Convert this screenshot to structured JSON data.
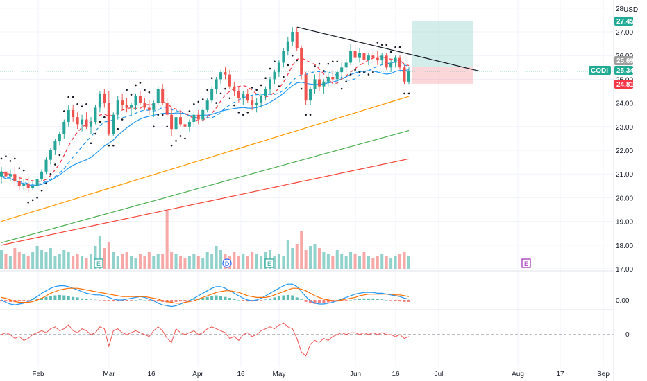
{
  "chart_data": {
    "type": "candlestick",
    "symbol": "CODI",
    "currency": "USD",
    "price_axis": {
      "range": [
        17.0,
        28.0
      ],
      "ticks": [
        "17.00",
        "18.00",
        "19.00",
        "20.00",
        "21.00",
        "22.00",
        "23.00",
        "24.00",
        "25.00",
        "26.00",
        "27.00",
        "28"
      ]
    },
    "time_axis": {
      "labels": [
        "Feb",
        "Mar",
        "16",
        "Apr",
        "16",
        "May",
        "Jun",
        "16",
        "Jul",
        "Aug",
        "17",
        "Sep"
      ]
    },
    "price_badges": {
      "target": {
        "label": "27.45",
        "value": 27.45,
        "color": "#22ab94"
      },
      "ma_level": {
        "label": "25.69",
        "value": 25.69,
        "color": "#9e9e9e"
      },
      "last": {
        "label": "25.34",
        "value": 25.34,
        "color": "#22ab94"
      },
      "stop": {
        "label": "24.81",
        "value": 24.81,
        "color": "#f23645"
      }
    },
    "symbol_badge": {
      "label": "CODI",
      "color": "#22ab94"
    },
    "position": {
      "target": 27.45,
      "entry": 25.53,
      "stop": 24.81
    },
    "moving_averages": [
      {
        "color": "#2196f3",
        "style": "solid",
        "period_hint": "short"
      },
      {
        "color": "#2196f3",
        "style": "dashed",
        "period_hint": "short-2"
      },
      {
        "color": "#f23645",
        "style": "dashed",
        "period_hint": "short-3"
      },
      {
        "color": "#ff9800",
        "style": "solid",
        "period_hint": "medium"
      },
      {
        "color": "#4caf50",
        "style": "solid",
        "period_hint": "long"
      },
      {
        "color": "#f44336",
        "style": "solid",
        "period_hint": "longest"
      }
    ],
    "trendline": {
      "start": {
        "date": "May 4",
        "price": 27.2
      },
      "end": {
        "date": "Jun 28",
        "price": 25.35
      },
      "color": "#131722"
    },
    "events": [
      {
        "type": "earnings",
        "label": "E",
        "when": "Feb 24"
      },
      {
        "type": "dividend",
        "label": "D",
        "when": "Apr 14"
      },
      {
        "type": "earnings",
        "label": "E",
        "when": "Apr 28"
      },
      {
        "type": "earnings",
        "label": "E",
        "when": "Jul 30"
      }
    ],
    "macd_panel": {
      "zero_label": "0.00"
    },
    "oscillator_panel": {
      "zero_label": "0"
    },
    "colors": {
      "up": "#26a69a",
      "down": "#ef5350",
      "grid": "#f0f3fa",
      "text": "#131722"
    },
    "candles": [
      {
        "o": 20.9,
        "h": 21.3,
        "l": 20.6,
        "c": 21.1
      },
      {
        "o": 21.1,
        "h": 21.4,
        "l": 20.8,
        "c": 20.9
      },
      {
        "o": 20.9,
        "h": 21.2,
        "l": 20.7,
        "c": 21.0
      },
      {
        "o": 21.0,
        "h": 21.3,
        "l": 20.5,
        "c": 20.7
      },
      {
        "o": 20.7,
        "h": 20.9,
        "l": 20.3,
        "c": 20.5
      },
      {
        "o": 20.5,
        "h": 20.8,
        "l": 20.3,
        "c": 20.6
      },
      {
        "o": 20.6,
        "h": 20.9,
        "l": 20.2,
        "c": 20.4
      },
      {
        "o": 20.4,
        "h": 20.7,
        "l": 20.3,
        "c": 20.5
      },
      {
        "o": 20.5,
        "h": 20.9,
        "l": 20.4,
        "c": 20.8
      },
      {
        "o": 20.8,
        "h": 21.2,
        "l": 20.7,
        "c": 21.1
      },
      {
        "o": 21.1,
        "h": 21.7,
        "l": 21.0,
        "c": 21.6
      },
      {
        "o": 21.6,
        "h": 22.1,
        "l": 21.4,
        "c": 22.0
      },
      {
        "o": 22.0,
        "h": 22.5,
        "l": 21.8,
        "c": 22.4
      },
      {
        "o": 22.4,
        "h": 22.8,
        "l": 22.2,
        "c": 22.7
      },
      {
        "o": 22.7,
        "h": 23.3,
        "l": 22.5,
        "c": 23.2
      },
      {
        "o": 23.2,
        "h": 23.9,
        "l": 23.0,
        "c": 23.7
      },
      {
        "o": 23.7,
        "h": 23.9,
        "l": 23.2,
        "c": 23.4
      },
      {
        "o": 23.4,
        "h": 23.6,
        "l": 22.9,
        "c": 23.1
      },
      {
        "o": 23.1,
        "h": 23.5,
        "l": 22.8,
        "c": 23.3
      },
      {
        "o": 23.3,
        "h": 23.6,
        "l": 22.9,
        "c": 23.0
      },
      {
        "o": 23.0,
        "h": 23.4,
        "l": 22.7,
        "c": 23.2
      },
      {
        "o": 23.2,
        "h": 23.9,
        "l": 23.1,
        "c": 23.8
      },
      {
        "o": 23.8,
        "h": 24.5,
        "l": 23.6,
        "c": 24.4
      },
      {
        "o": 24.4,
        "h": 24.6,
        "l": 23.8,
        "c": 24.0
      },
      {
        "o": 24.0,
        "h": 24.5,
        "l": 22.6,
        "c": 22.7
      },
      {
        "o": 22.7,
        "h": 23.6,
        "l": 22.6,
        "c": 23.5
      },
      {
        "o": 23.5,
        "h": 24.3,
        "l": 23.3,
        "c": 24.1
      },
      {
        "o": 24.1,
        "h": 24.4,
        "l": 23.7,
        "c": 23.9
      },
      {
        "o": 23.9,
        "h": 24.2,
        "l": 23.6,
        "c": 23.8
      },
      {
        "o": 23.8,
        "h": 24.0,
        "l": 23.5,
        "c": 23.9
      },
      {
        "o": 23.9,
        "h": 24.4,
        "l": 23.7,
        "c": 24.3
      },
      {
        "o": 24.3,
        "h": 24.5,
        "l": 23.9,
        "c": 24.0
      },
      {
        "o": 24.0,
        "h": 24.2,
        "l": 23.7,
        "c": 23.8
      },
      {
        "o": 23.8,
        "h": 24.1,
        "l": 23.5,
        "c": 23.7
      },
      {
        "o": 23.7,
        "h": 24.1,
        "l": 23.4,
        "c": 24.0
      },
      {
        "o": 24.0,
        "h": 24.7,
        "l": 23.9,
        "c": 24.6
      },
      {
        "o": 24.6,
        "h": 24.8,
        "l": 23.9,
        "c": 24.0
      },
      {
        "o": 24.0,
        "h": 24.2,
        "l": 23.4,
        "c": 23.5
      },
      {
        "o": 23.5,
        "h": 23.8,
        "l": 22.6,
        "c": 22.9
      },
      {
        "o": 22.9,
        "h": 23.6,
        "l": 22.8,
        "c": 23.4
      },
      {
        "o": 23.4,
        "h": 23.7,
        "l": 23.0,
        "c": 23.1
      },
      {
        "o": 23.1,
        "h": 23.4,
        "l": 22.9,
        "c": 23.0
      },
      {
        "o": 23.0,
        "h": 23.3,
        "l": 22.8,
        "c": 23.2
      },
      {
        "o": 23.2,
        "h": 23.6,
        "l": 23.0,
        "c": 23.5
      },
      {
        "o": 23.5,
        "h": 23.7,
        "l": 23.1,
        "c": 23.3
      },
      {
        "o": 23.3,
        "h": 23.8,
        "l": 23.2,
        "c": 23.7
      },
      {
        "o": 23.7,
        "h": 24.2,
        "l": 23.6,
        "c": 24.1
      },
      {
        "o": 24.1,
        "h": 24.7,
        "l": 24.0,
        "c": 24.6
      },
      {
        "o": 24.6,
        "h": 25.1,
        "l": 24.4,
        "c": 25.0
      },
      {
        "o": 25.0,
        "h": 25.4,
        "l": 24.8,
        "c": 25.3
      },
      {
        "o": 25.3,
        "h": 25.5,
        "l": 25.0,
        "c": 25.2
      },
      {
        "o": 25.2,
        "h": 25.4,
        "l": 24.6,
        "c": 24.7
      },
      {
        "o": 24.7,
        "h": 24.9,
        "l": 24.3,
        "c": 24.5
      },
      {
        "o": 24.5,
        "h": 24.7,
        "l": 24.0,
        "c": 24.2
      },
      {
        "o": 24.2,
        "h": 24.5,
        "l": 23.9,
        "c": 24.4
      },
      {
        "o": 24.4,
        "h": 24.6,
        "l": 24.0,
        "c": 24.1
      },
      {
        "o": 24.1,
        "h": 24.3,
        "l": 23.7,
        "c": 23.9
      },
      {
        "o": 23.9,
        "h": 24.2,
        "l": 23.6,
        "c": 24.0
      },
      {
        "o": 24.0,
        "h": 24.4,
        "l": 23.8,
        "c": 24.3
      },
      {
        "o": 24.3,
        "h": 24.7,
        "l": 24.1,
        "c": 24.6
      },
      {
        "o": 24.6,
        "h": 25.1,
        "l": 24.4,
        "c": 25.0
      },
      {
        "o": 25.0,
        "h": 25.4,
        "l": 24.8,
        "c": 25.3
      },
      {
        "o": 25.3,
        "h": 25.8,
        "l": 25.1,
        "c": 25.7
      },
      {
        "o": 25.7,
        "h": 26.3,
        "l": 25.5,
        "c": 26.2
      },
      {
        "o": 26.2,
        "h": 26.8,
        "l": 26.0,
        "c": 26.6
      },
      {
        "o": 26.6,
        "h": 27.2,
        "l": 26.4,
        "c": 27.0
      },
      {
        "o": 27.0,
        "h": 27.2,
        "l": 26.2,
        "c": 26.3
      },
      {
        "o": 26.3,
        "h": 26.4,
        "l": 25.0,
        "c": 25.2
      },
      {
        "o": 25.2,
        "h": 25.3,
        "l": 23.9,
        "c": 24.1
      },
      {
        "o": 24.1,
        "h": 24.7,
        "l": 23.9,
        "c": 24.6
      },
      {
        "o": 24.6,
        "h": 25.2,
        "l": 24.4,
        "c": 25.0
      },
      {
        "o": 25.0,
        "h": 25.3,
        "l": 24.5,
        "c": 24.7
      },
      {
        "o": 24.7,
        "h": 25.0,
        "l": 24.4,
        "c": 24.9
      },
      {
        "o": 24.9,
        "h": 25.3,
        "l": 24.7,
        "c": 25.1
      },
      {
        "o": 25.1,
        "h": 25.4,
        "l": 24.8,
        "c": 25.0
      },
      {
        "o": 25.0,
        "h": 25.4,
        "l": 24.8,
        "c": 25.3
      },
      {
        "o": 25.3,
        "h": 25.7,
        "l": 25.0,
        "c": 25.5
      },
      {
        "o": 25.5,
        "h": 25.9,
        "l": 25.3,
        "c": 25.7
      },
      {
        "o": 25.7,
        "h": 26.5,
        "l": 25.6,
        "c": 26.2
      },
      {
        "o": 26.2,
        "h": 26.4,
        "l": 25.8,
        "c": 25.9
      },
      {
        "o": 25.9,
        "h": 26.3,
        "l": 25.7,
        "c": 26.1
      },
      {
        "o": 26.1,
        "h": 26.2,
        "l": 25.7,
        "c": 25.8
      },
      {
        "o": 25.8,
        "h": 26.1,
        "l": 25.6,
        "c": 26.0
      },
      {
        "o": 26.0,
        "h": 26.2,
        "l": 25.7,
        "c": 25.9
      },
      {
        "o": 25.9,
        "h": 26.2,
        "l": 25.6,
        "c": 25.8
      },
      {
        "o": 25.8,
        "h": 26.1,
        "l": 25.6,
        "c": 26.0
      },
      {
        "o": 26.0,
        "h": 26.1,
        "l": 25.4,
        "c": 25.5
      },
      {
        "o": 25.5,
        "h": 25.8,
        "l": 25.3,
        "c": 25.7
      },
      {
        "o": 25.7,
        "h": 26.0,
        "l": 25.5,
        "c": 25.9
      },
      {
        "o": 25.9,
        "h": 26.0,
        "l": 25.4,
        "c": 25.5
      },
      {
        "o": 25.5,
        "h": 25.6,
        "l": 24.8,
        "c": 24.9
      },
      {
        "o": 24.9,
        "h": 25.5,
        "l": 24.8,
        "c": 25.34
      }
    ],
    "volume": [
      0.45,
      0.35,
      0.3,
      0.5,
      0.4,
      0.35,
      0.3,
      0.4,
      0.55,
      0.45,
      0.4,
      0.5,
      0.3,
      0.35,
      0.45,
      0.4,
      0.3,
      0.35,
      0.3,
      0.25,
      0.35,
      0.55,
      0.8,
      0.5,
      0.65,
      0.4,
      0.3,
      0.35,
      0.4,
      0.3,
      0.25,
      0.35,
      0.3,
      0.4,
      0.3,
      0.35,
      0.35,
      1.4,
      0.4,
      0.35,
      0.3,
      0.25,
      0.3,
      0.35,
      0.3,
      0.25,
      0.4,
      0.35,
      0.55,
      0.45,
      0.35,
      0.3,
      0.4,
      0.3,
      0.35,
      0.3,
      0.4,
      0.35,
      0.3,
      0.4,
      0.45,
      0.3,
      0.35,
      0.3,
      0.7,
      0.5,
      0.6,
      0.9,
      0.45,
      0.55,
      0.6,
      0.5,
      0.4,
      0.35,
      0.3,
      0.45,
      0.35,
      0.3,
      0.4,
      0.35,
      0.3,
      0.4,
      0.3,
      0.25,
      0.3,
      0.35,
      0.3,
      0.25,
      0.3,
      0.35,
      0.4,
      0.3
    ],
    "macd_hist": [
      -0.2,
      -0.3,
      -0.4,
      -0.4,
      -0.3,
      -0.2,
      -0.1,
      0.1,
      0.2,
      0.4,
      0.6,
      0.8,
      0.9,
      1.0,
      0.9,
      0.8,
      0.6,
      0.5,
      0.3,
      0.2,
      0.1,
      0.05,
      -0.05,
      -0.1,
      -0.2,
      -0.3,
      -0.3,
      -0.25,
      -0.2,
      -0.1,
      0.0,
      0.1,
      0.0,
      -0.1,
      -0.2,
      -0.3,
      -0.4,
      -0.5,
      -0.5,
      -0.4,
      -0.3,
      -0.2,
      -0.1,
      0.1,
      0.2,
      0.4,
      0.6,
      0.8,
      0.9,
      0.8,
      0.6,
      0.4,
      0.2,
      0.0,
      -0.2,
      -0.3,
      -0.3,
      -0.2,
      -0.1,
      0.1,
      0.3,
      0.5,
      0.7,
      0.9,
      1.0,
      0.9,
      0.5,
      0.1,
      -0.4,
      -0.7,
      -0.8,
      -0.7,
      -0.6,
      -0.5,
      -0.4,
      -0.3,
      -0.2,
      -0.1,
      0.0,
      0.1,
      0.2,
      0.3,
      0.3,
      0.3,
      0.2,
      0.1,
      0.0,
      -0.1,
      -0.2,
      -0.3,
      -0.4,
      -0.4
    ],
    "macd_line": [
      0.0,
      -0.3,
      -0.5,
      -0.6,
      -0.5,
      -0.4,
      -0.2,
      0.1,
      0.4,
      0.8,
      1.1,
      1.4,
      1.6,
      1.7,
      1.7,
      1.6,
      1.4,
      1.2,
      1.0,
      0.8,
      0.7,
      0.6,
      0.6,
      0.5,
      0.3,
      0.1,
      0.0,
      0.0,
      0.1,
      0.2,
      0.3,
      0.4,
      0.3,
      0.1,
      -0.1,
      -0.4,
      -0.6,
      -0.7,
      -0.8,
      -0.7,
      -0.5,
      -0.3,
      -0.1,
      0.2,
      0.5,
      0.8,
      1.1,
      1.4,
      1.6,
      1.6,
      1.4,
      1.1,
      0.8,
      0.5,
      0.2,
      0.0,
      -0.1,
      0.0,
      0.2,
      0.5,
      0.8,
      1.1,
      1.4,
      1.7,
      1.9,
      1.9,
      1.6,
      1.0,
      0.4,
      -0.1,
      -0.4,
      -0.5,
      -0.5,
      -0.4,
      -0.3,
      -0.1,
      0.1,
      0.3,
      0.5,
      0.7,
      0.8,
      0.9,
      0.9,
      0.9,
      0.8,
      0.8,
      0.7,
      0.6,
      0.5,
      0.4,
      0.2,
      0.1
    ],
    "macd_signal": [
      0.3,
      0.2,
      0.0,
      -0.2,
      -0.3,
      -0.3,
      -0.3,
      -0.2,
      0.0,
      0.2,
      0.5,
      0.8,
      1.0,
      1.2,
      1.3,
      1.4,
      1.4,
      1.4,
      1.3,
      1.2,
      1.1,
      1.0,
      0.9,
      0.8,
      0.7,
      0.6,
      0.5,
      0.4,
      0.4,
      0.4,
      0.4,
      0.4,
      0.4,
      0.3,
      0.2,
      0.1,
      -0.1,
      -0.2,
      -0.3,
      -0.4,
      -0.4,
      -0.3,
      -0.2,
      -0.1,
      0.1,
      0.3,
      0.5,
      0.7,
      0.9,
      1.0,
      1.1,
      1.1,
      1.0,
      0.9,
      0.7,
      0.5,
      0.4,
      0.3,
      0.3,
      0.3,
      0.4,
      0.6,
      0.8,
      1.0,
      1.2,
      1.4,
      1.4,
      1.3,
      1.1,
      0.8,
      0.5,
      0.3,
      0.1,
      0.0,
      -0.1,
      -0.1,
      0.0,
      0.1,
      0.2,
      0.3,
      0.5,
      0.6,
      0.7,
      0.7,
      0.7,
      0.7,
      0.7,
      0.7,
      0.6,
      0.6,
      0.5,
      0.4
    ],
    "oscillator": [
      0.0,
      0.1,
      0.0,
      -0.2,
      -0.1,
      -0.3,
      -0.2,
      0.0,
      0.1,
      0.2,
      0.1,
      0.3,
      0.4,
      0.2,
      0.3,
      0.5,
      0.2,
      0.1,
      0.3,
      0.2,
      0.0,
      0.1,
      0.4,
      0.3,
      -0.6,
      0.2,
      0.3,
      0.1,
      0.0,
      0.1,
      0.2,
      0.1,
      0.0,
      -0.1,
      0.2,
      0.4,
      0.2,
      -0.2,
      -0.4,
      0.3,
      0.1,
      0.0,
      0.1,
      0.2,
      0.0,
      0.1,
      0.3,
      0.4,
      0.3,
      0.2,
      0.1,
      -0.2,
      -0.1,
      -0.3,
      0.0,
      0.1,
      -0.1,
      0.0,
      0.2,
      0.3,
      0.4,
      0.3,
      0.5,
      0.6,
      0.4,
      0.3,
      -0.2,
      -0.9,
      -1.1,
      -0.5,
      -0.3,
      -0.4,
      -0.2,
      -0.3,
      -0.1,
      0.0,
      0.1,
      0.0,
      0.1,
      0.1,
      0.0,
      0.1,
      0.0,
      0.1,
      0.0,
      0.1,
      0.0,
      0.0,
      -0.1,
      0.0,
      -0.2,
      -0.1
    ]
  }
}
